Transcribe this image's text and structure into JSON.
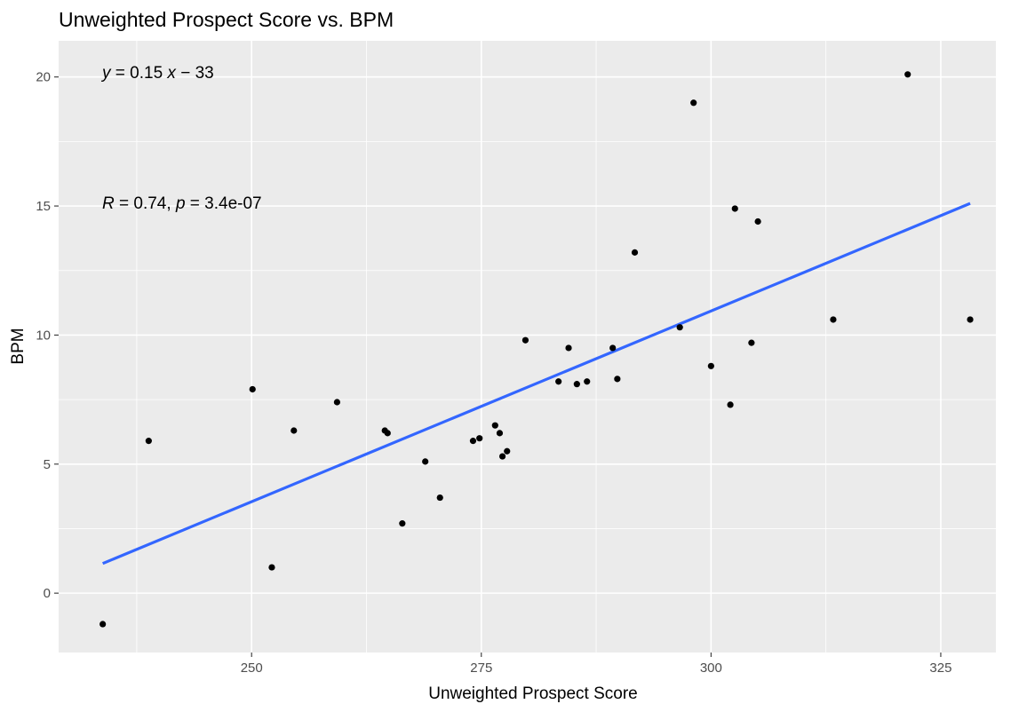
{
  "chart_data": {
    "type": "scatter",
    "title": "Unweighted Prospect Score vs. BPM",
    "xlabel": "Unweighted Prospect Score",
    "ylabel": "BPM",
    "xlim": [
      229,
      331
    ],
    "ylim": [
      -2.3,
      21.4
    ],
    "x_ticks": [
      250,
      275,
      300,
      325
    ],
    "y_ticks": [
      0,
      5,
      10,
      15,
      20
    ],
    "x_tick_labels": [
      "250",
      "275",
      "300",
      "325"
    ],
    "y_tick_labels": [
      "0",
      "5",
      "10",
      "15",
      "20"
    ],
    "grid": true,
    "colors": {
      "panel": "#ebebeb",
      "grid": "#ffffff",
      "points": "#000000",
      "fit_line": "#3366ff"
    },
    "points": [
      {
        "x": 233.8,
        "y": -1.2
      },
      {
        "x": 238.8,
        "y": 5.9
      },
      {
        "x": 250.1,
        "y": 7.9
      },
      {
        "x": 252.2,
        "y": 1.0
      },
      {
        "x": 254.6,
        "y": 6.3
      },
      {
        "x": 259.3,
        "y": 7.4
      },
      {
        "x": 264.5,
        "y": 6.3
      },
      {
        "x": 264.8,
        "y": 6.2
      },
      {
        "x": 266.4,
        "y": 2.7
      },
      {
        "x": 268.9,
        "y": 5.1
      },
      {
        "x": 270.5,
        "y": 3.7
      },
      {
        "x": 274.1,
        "y": 5.9
      },
      {
        "x": 274.8,
        "y": 6.0
      },
      {
        "x": 276.5,
        "y": 6.5
      },
      {
        "x": 277.0,
        "y": 6.2
      },
      {
        "x": 277.3,
        "y": 5.3
      },
      {
        "x": 277.8,
        "y": 5.5
      },
      {
        "x": 279.8,
        "y": 9.8
      },
      {
        "x": 283.4,
        "y": 8.2
      },
      {
        "x": 284.5,
        "y": 9.5
      },
      {
        "x": 285.4,
        "y": 8.1
      },
      {
        "x": 286.5,
        "y": 8.2
      },
      {
        "x": 289.3,
        "y": 9.5
      },
      {
        "x": 289.8,
        "y": 8.3
      },
      {
        "x": 291.7,
        "y": 13.2
      },
      {
        "x": 296.6,
        "y": 10.3
      },
      {
        "x": 298.1,
        "y": 19.0
      },
      {
        "x": 300.0,
        "y": 8.8
      },
      {
        "x": 302.1,
        "y": 7.3
      },
      {
        "x": 302.6,
        "y": 14.9
      },
      {
        "x": 304.4,
        "y": 9.7
      },
      {
        "x": 305.1,
        "y": 14.4
      },
      {
        "x": 313.3,
        "y": 10.6
      },
      {
        "x": 321.4,
        "y": 20.1
      },
      {
        "x": 328.2,
        "y": 10.6
      }
    ],
    "fit_line": {
      "x_start": 233.8,
      "x_end": 328.2,
      "y_start": 1.15,
      "y_end": 15.1
    },
    "annotations": {
      "equation": {
        "y_var": "y",
        "eq1": " = 0.15 ",
        "x_var": "x",
        "eq2": " − 33"
      },
      "stats": {
        "r_var": "R",
        "r_val": " = 0.74, ",
        "p_var": "p",
        "p_val": " = 3.4e-07"
      }
    }
  }
}
